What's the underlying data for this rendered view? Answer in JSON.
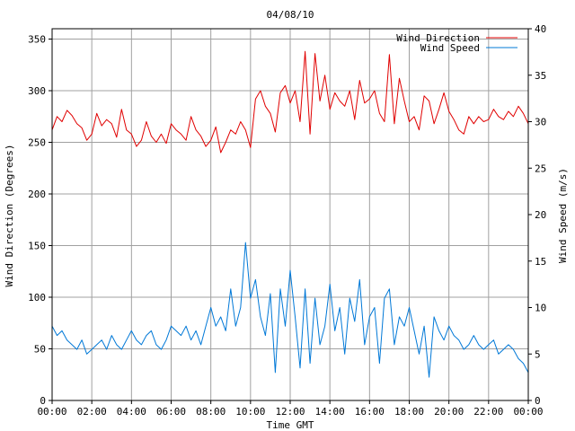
{
  "colors": {
    "background": "#ffffff",
    "grid": "#a0a0a0",
    "axis": "#000000",
    "direction": "#e00000",
    "speed": "#0078d7"
  },
  "chart_data": {
    "type": "line",
    "title": "04/08/10",
    "xlabel": "Time GMT",
    "ylabel_left": "Wind Direction (Degrees)",
    "ylabel_right": "Wind Speed (m/s)",
    "x_ticks": [
      "00:00",
      "02:00",
      "04:00",
      "06:00",
      "08:00",
      "10:00",
      "12:00",
      "14:00",
      "16:00",
      "18:00",
      "20:00",
      "22:00",
      "00:00"
    ],
    "x_range_hours": [
      0,
      24
    ],
    "y_left": {
      "range": [
        0,
        360
      ],
      "ticks": [
        0,
        50,
        100,
        150,
        200,
        250,
        300,
        350
      ]
    },
    "y_right": {
      "range": [
        0,
        40
      ],
      "ticks": [
        0,
        5,
        10,
        15,
        20,
        25,
        30,
        35,
        40
      ]
    },
    "grid": true,
    "legend_position": "top-right",
    "series": [
      {
        "name": "Wind Direction",
        "axis": "left",
        "x_hours": [
          0,
          0.25,
          0.5,
          0.75,
          1,
          1.25,
          1.5,
          1.75,
          2,
          2.25,
          2.5,
          2.75,
          3,
          3.25,
          3.5,
          3.75,
          4,
          4.25,
          4.5,
          4.75,
          5,
          5.25,
          5.5,
          5.75,
          6,
          6.25,
          6.5,
          6.75,
          7,
          7.25,
          7.5,
          7.75,
          8,
          8.25,
          8.5,
          8.75,
          9,
          9.25,
          9.5,
          9.75,
          10,
          10.25,
          10.5,
          10.75,
          11,
          11.25,
          11.5,
          11.75,
          12,
          12.25,
          12.5,
          12.75,
          13,
          13.25,
          13.5,
          13.75,
          14,
          14.25,
          14.5,
          14.75,
          15,
          15.25,
          15.5,
          15.75,
          16,
          16.25,
          16.5,
          16.75,
          17,
          17.25,
          17.5,
          17.75,
          18,
          18.25,
          18.5,
          18.75,
          19,
          19.25,
          19.5,
          19.75,
          20,
          20.25,
          20.5,
          20.75,
          21,
          21.25,
          21.5,
          21.75,
          22,
          22.25,
          22.5,
          22.75,
          23,
          23.25,
          23.5,
          23.75,
          24
        ],
        "values": [
          262,
          275,
          270,
          281,
          276,
          268,
          264,
          252,
          258,
          278,
          266,
          272,
          268,
          255,
          282,
          262,
          258,
          246,
          252,
          270,
          256,
          250,
          258,
          249,
          268,
          262,
          258,
          252,
          275,
          262,
          256,
          246,
          252,
          265,
          240,
          250,
          262,
          258,
          270,
          262,
          245,
          292,
          300,
          285,
          278,
          260,
          298,
          305,
          288,
          300,
          270,
          338,
          258,
          336,
          290,
          315,
          282,
          298,
          290,
          285,
          300,
          272,
          310,
          288,
          292,
          300,
          278,
          270,
          335,
          268,
          312,
          290,
          270,
          275,
          262,
          295,
          290,
          268,
          282,
          298,
          280,
          272,
          262,
          258,
          275,
          268,
          275,
          270,
          272,
          282,
          275,
          272,
          280,
          275,
          285,
          278,
          268
        ]
      },
      {
        "name": "Wind Speed",
        "axis": "right",
        "x_hours": [
          0,
          0.25,
          0.5,
          0.75,
          1,
          1.25,
          1.5,
          1.75,
          2,
          2.25,
          2.5,
          2.75,
          3,
          3.25,
          3.5,
          3.75,
          4,
          4.25,
          4.5,
          4.75,
          5,
          5.25,
          5.5,
          5.75,
          6,
          6.25,
          6.5,
          6.75,
          7,
          7.25,
          7.5,
          7.75,
          8,
          8.25,
          8.5,
          8.75,
          9,
          9.25,
          9.5,
          9.75,
          10,
          10.25,
          10.5,
          10.75,
          11,
          11.25,
          11.5,
          11.75,
          12,
          12.25,
          12.5,
          12.75,
          13,
          13.25,
          13.5,
          13.75,
          14,
          14.25,
          14.5,
          14.75,
          15,
          15.25,
          15.5,
          15.75,
          16,
          16.25,
          16.5,
          16.75,
          17,
          17.25,
          17.5,
          17.75,
          18,
          18.25,
          18.5,
          18.75,
          19,
          19.25,
          19.5,
          19.75,
          20,
          20.25,
          20.5,
          20.75,
          21,
          21.25,
          21.5,
          21.75,
          22,
          22.25,
          22.5,
          22.75,
          23,
          23.25,
          23.5,
          23.75,
          24
        ],
        "values": [
          8,
          7,
          7.5,
          6.5,
          6,
          5.5,
          6.5,
          5,
          5.5,
          6,
          6.5,
          5.5,
          7,
          6,
          5.5,
          6.5,
          7.5,
          6.5,
          6,
          7,
          7.5,
          6,
          5.5,
          6.5,
          8,
          7.5,
          7,
          8,
          6.5,
          7.5,
          6,
          8,
          10,
          8,
          9,
          7.5,
          12,
          8,
          10,
          17,
          11,
          13,
          9,
          7,
          11.5,
          3,
          12,
          8,
          14,
          9,
          3.5,
          12,
          4,
          11,
          6,
          8,
          12.5,
          7.5,
          10,
          5,
          11,
          8.5,
          13,
          6,
          9,
          10,
          4,
          11,
          12,
          6,
          9,
          8,
          10,
          7.5,
          5,
          8,
          2.5,
          9,
          7.5,
          6.5,
          8,
          7,
          6.5,
          5.5,
          6,
          7,
          6,
          5.5,
          6,
          6.5,
          5,
          5.5,
          6,
          5.5,
          4.5,
          4,
          3
        ]
      }
    ]
  }
}
